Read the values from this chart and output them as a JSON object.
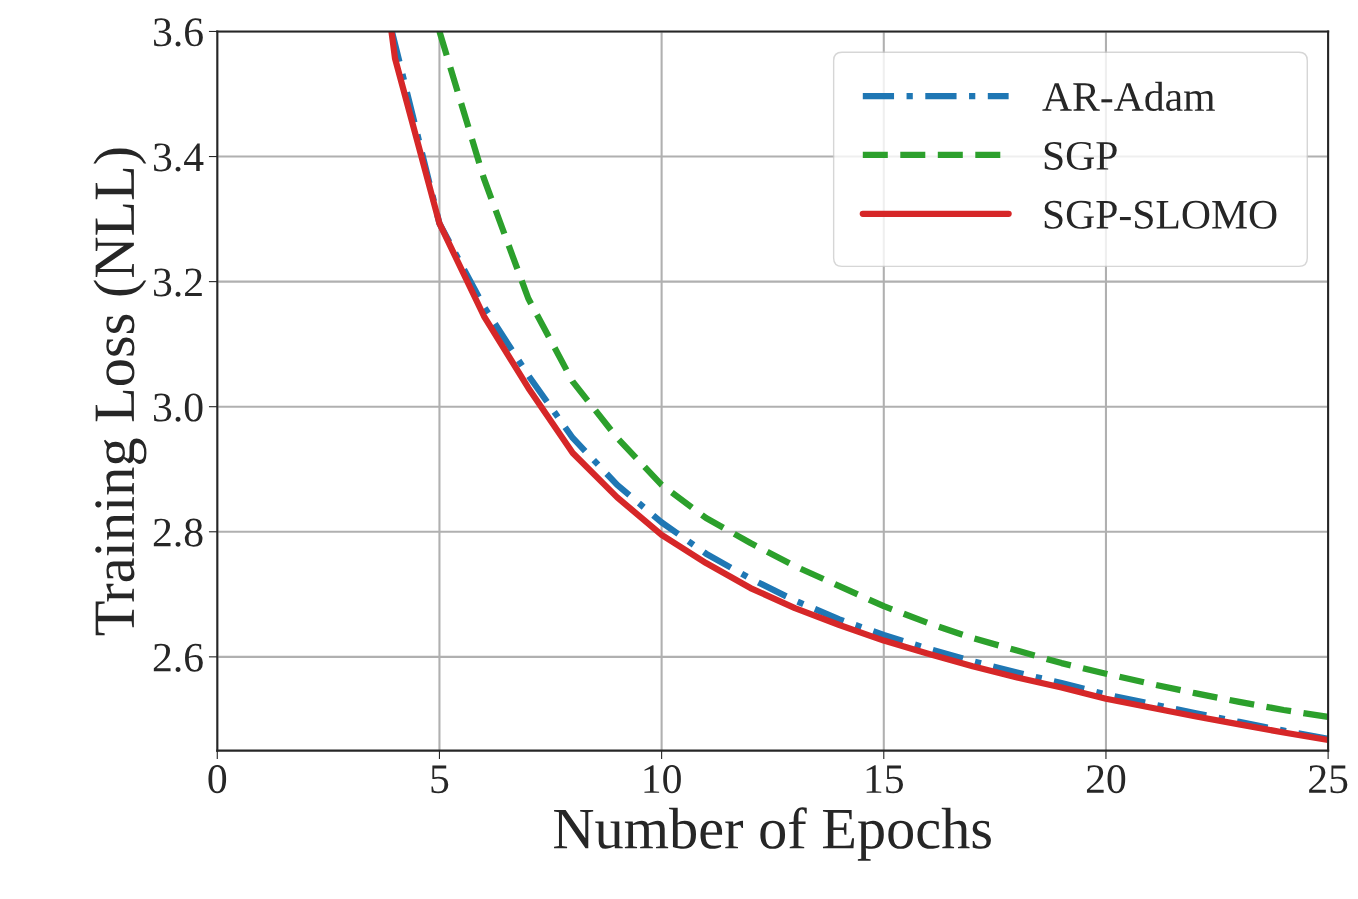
{
  "chart_data": {
    "type": "line",
    "xlabel": "Number of Epochs",
    "ylabel": "Training Loss (NLL)",
    "xlim": [
      0,
      25
    ],
    "ylim": [
      2.45,
      3.6
    ],
    "xticks": [
      0,
      5,
      10,
      15,
      20,
      25
    ],
    "yticks": [
      {
        "value": 2.6,
        "label": "2.6"
      },
      {
        "value": 2.8,
        "label": "2.8"
      },
      {
        "value": 3.0,
        "label": "3.0"
      },
      {
        "value": 3.2,
        "label": "3.2"
      },
      {
        "value": 3.4,
        "label": "3.4"
      },
      {
        "value": 3.6,
        "label": "3.6"
      }
    ],
    "grid": true,
    "legend": "top right",
    "series": [
      {
        "name": "AR-Adam",
        "color": "#1f77b4",
        "line_style": "dashdot",
        "x": [
          3.93,
          5,
          6,
          7,
          8,
          9,
          10,
          11,
          12,
          13,
          14,
          15,
          16,
          17,
          18,
          19,
          20,
          21,
          22,
          23,
          24,
          25
        ],
        "values": [
          3.6,
          3.293,
          3.16,
          3.05,
          2.95,
          2.875,
          2.815,
          2.765,
          2.725,
          2.69,
          2.66,
          2.635,
          2.613,
          2.593,
          2.575,
          2.558,
          2.54,
          2.525,
          2.51,
          2.496,
          2.482,
          2.469
        ]
      },
      {
        "name": "SGP",
        "color": "#2ca02c",
        "line_style": "dashed",
        "x": [
          5,
          6,
          7,
          8,
          9,
          10,
          11,
          12,
          13,
          14,
          15,
          16,
          17,
          18,
          19,
          20,
          21,
          22,
          23,
          24,
          25
        ],
        "values": [
          3.6,
          3.365,
          3.173,
          3.04,
          2.95,
          2.875,
          2.822,
          2.782,
          2.745,
          2.713,
          2.681,
          2.654,
          2.63,
          2.61,
          2.59,
          2.573,
          2.557,
          2.542,
          2.528,
          2.515,
          2.504
        ]
      },
      {
        "name": "SGP-SLOMO",
        "color": "#d62728",
        "line_style": "solid",
        "x": [
          3.92,
          4,
          5,
          6,
          7,
          8,
          9,
          10,
          11,
          12,
          13,
          14,
          15,
          16,
          17,
          18,
          19,
          20,
          21,
          22,
          23,
          24,
          25
        ],
        "values": [
          3.6,
          3.557,
          3.293,
          3.145,
          3.03,
          2.926,
          2.855,
          2.795,
          2.75,
          2.71,
          2.678,
          2.651,
          2.626,
          2.605,
          2.585,
          2.567,
          2.551,
          2.533,
          2.519,
          2.505,
          2.492,
          2.479,
          2.467
        ]
      }
    ]
  }
}
